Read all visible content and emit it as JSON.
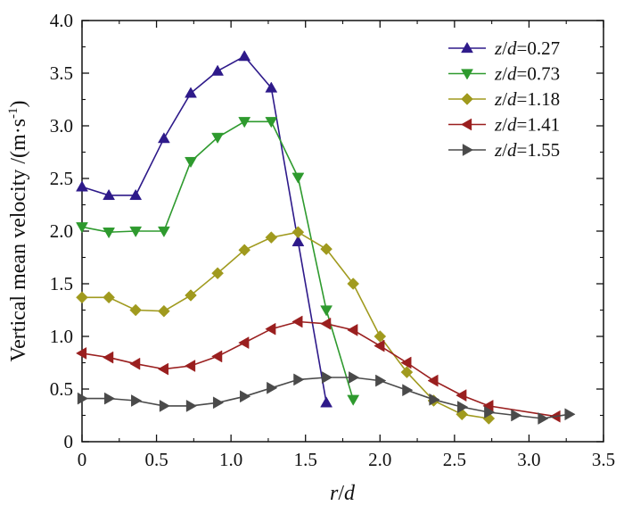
{
  "chart_data": {
    "type": "line",
    "title": "",
    "xlabel": "r/d",
    "ylabel": "Vertical mean velocity /(m·s⁻¹)",
    "xlabel_parts": {
      "var1": "r",
      "sep": "/",
      "var2": "d"
    },
    "ylabel_parts": {
      "main": "Vertical mean velocity /(m·s",
      "exp": "-1",
      "close": ")"
    },
    "xlim": [
      0,
      3.5
    ],
    "ylim": [
      0,
      4.0
    ],
    "xticks": [
      0,
      0.5,
      1.0,
      1.5,
      2.0,
      2.5,
      3.0,
      3.5
    ],
    "xtick_labels": [
      "0",
      "0.5",
      "1.0",
      "1.5",
      "2.0",
      "2.5",
      "3.0",
      "3.5"
    ],
    "yticks": [
      0,
      0.5,
      1.0,
      1.5,
      2.0,
      2.5,
      3.0,
      3.5,
      4.0
    ],
    "ytick_labels": [
      "0",
      "0.5",
      "1.0",
      "1.5",
      "2.0",
      "2.5",
      "3.0",
      "3.5",
      "4.0"
    ],
    "grid": false,
    "legend_position": "top-right",
    "series": [
      {
        "name": "z/d=0.27",
        "var1": "z",
        "sep": "/",
        "var2": "d",
        "eq": "=0.27",
        "color": "#2e1a8a",
        "marker": "triangle-up",
        "x": [
          0,
          0.18,
          0.36,
          0.55,
          0.73,
          0.91,
          1.09,
          1.27,
          1.45,
          1.64
        ],
        "y": [
          2.42,
          2.34,
          2.34,
          2.88,
          3.31,
          3.52,
          3.66,
          3.36,
          1.9,
          0.37
        ]
      },
      {
        "name": "z/d=0.73",
        "var1": "z",
        "sep": "/",
        "var2": "d",
        "eq": "=0.73",
        "color": "#2e9a2e",
        "marker": "triangle-down",
        "x": [
          0,
          0.18,
          0.36,
          0.55,
          0.73,
          0.91,
          1.09,
          1.27,
          1.45,
          1.64,
          1.82
        ],
        "y": [
          2.04,
          1.99,
          2.0,
          2.0,
          2.66,
          2.89,
          3.04,
          3.04,
          2.51,
          1.25,
          0.4
        ]
      },
      {
        "name": "z/d=1.18",
        "var1": "z",
        "sep": "/",
        "var2": "d",
        "eq": "=1.18",
        "color": "#a09a1e",
        "marker": "diamond",
        "x": [
          0,
          0.18,
          0.36,
          0.55,
          0.73,
          0.91,
          1.09,
          1.27,
          1.45,
          1.64,
          1.82,
          2.0,
          2.18,
          2.36,
          2.55,
          2.73
        ],
        "y": [
          1.37,
          1.37,
          1.25,
          1.24,
          1.39,
          1.6,
          1.82,
          1.94,
          1.99,
          1.83,
          1.5,
          1.0,
          0.66,
          0.39,
          0.26,
          0.22
        ]
      },
      {
        "name": "z/d=1.41",
        "var1": "z",
        "sep": "/",
        "var2": "d",
        "eq": "=1.41",
        "color": "#9a1f1f",
        "marker": "triangle-left",
        "x": [
          0,
          0.18,
          0.36,
          0.55,
          0.73,
          0.91,
          1.09,
          1.27,
          1.45,
          1.64,
          1.82,
          2.0,
          2.18,
          2.36,
          2.55,
          2.73,
          3.18
        ],
        "y": [
          0.84,
          0.8,
          0.74,
          0.69,
          0.72,
          0.81,
          0.94,
          1.07,
          1.14,
          1.12,
          1.06,
          0.91,
          0.75,
          0.58,
          0.44,
          0.34,
          0.24
        ]
      },
      {
        "name": "z/d=1.55",
        "var1": "z",
        "sep": "/",
        "var2": "d",
        "eq": "=1.55",
        "color": "#4a4a4a",
        "marker": "triangle-right",
        "x": [
          0,
          0.18,
          0.36,
          0.55,
          0.73,
          0.91,
          1.09,
          1.27,
          1.45,
          1.64,
          1.82,
          2.0,
          2.18,
          2.36,
          2.55,
          2.73,
          2.91,
          3.09,
          3.27
        ],
        "y": [
          0.41,
          0.41,
          0.39,
          0.34,
          0.34,
          0.37,
          0.43,
          0.51,
          0.59,
          0.61,
          0.61,
          0.58,
          0.49,
          0.4,
          0.33,
          0.28,
          0.25,
          0.22,
          0.26
        ]
      }
    ]
  }
}
